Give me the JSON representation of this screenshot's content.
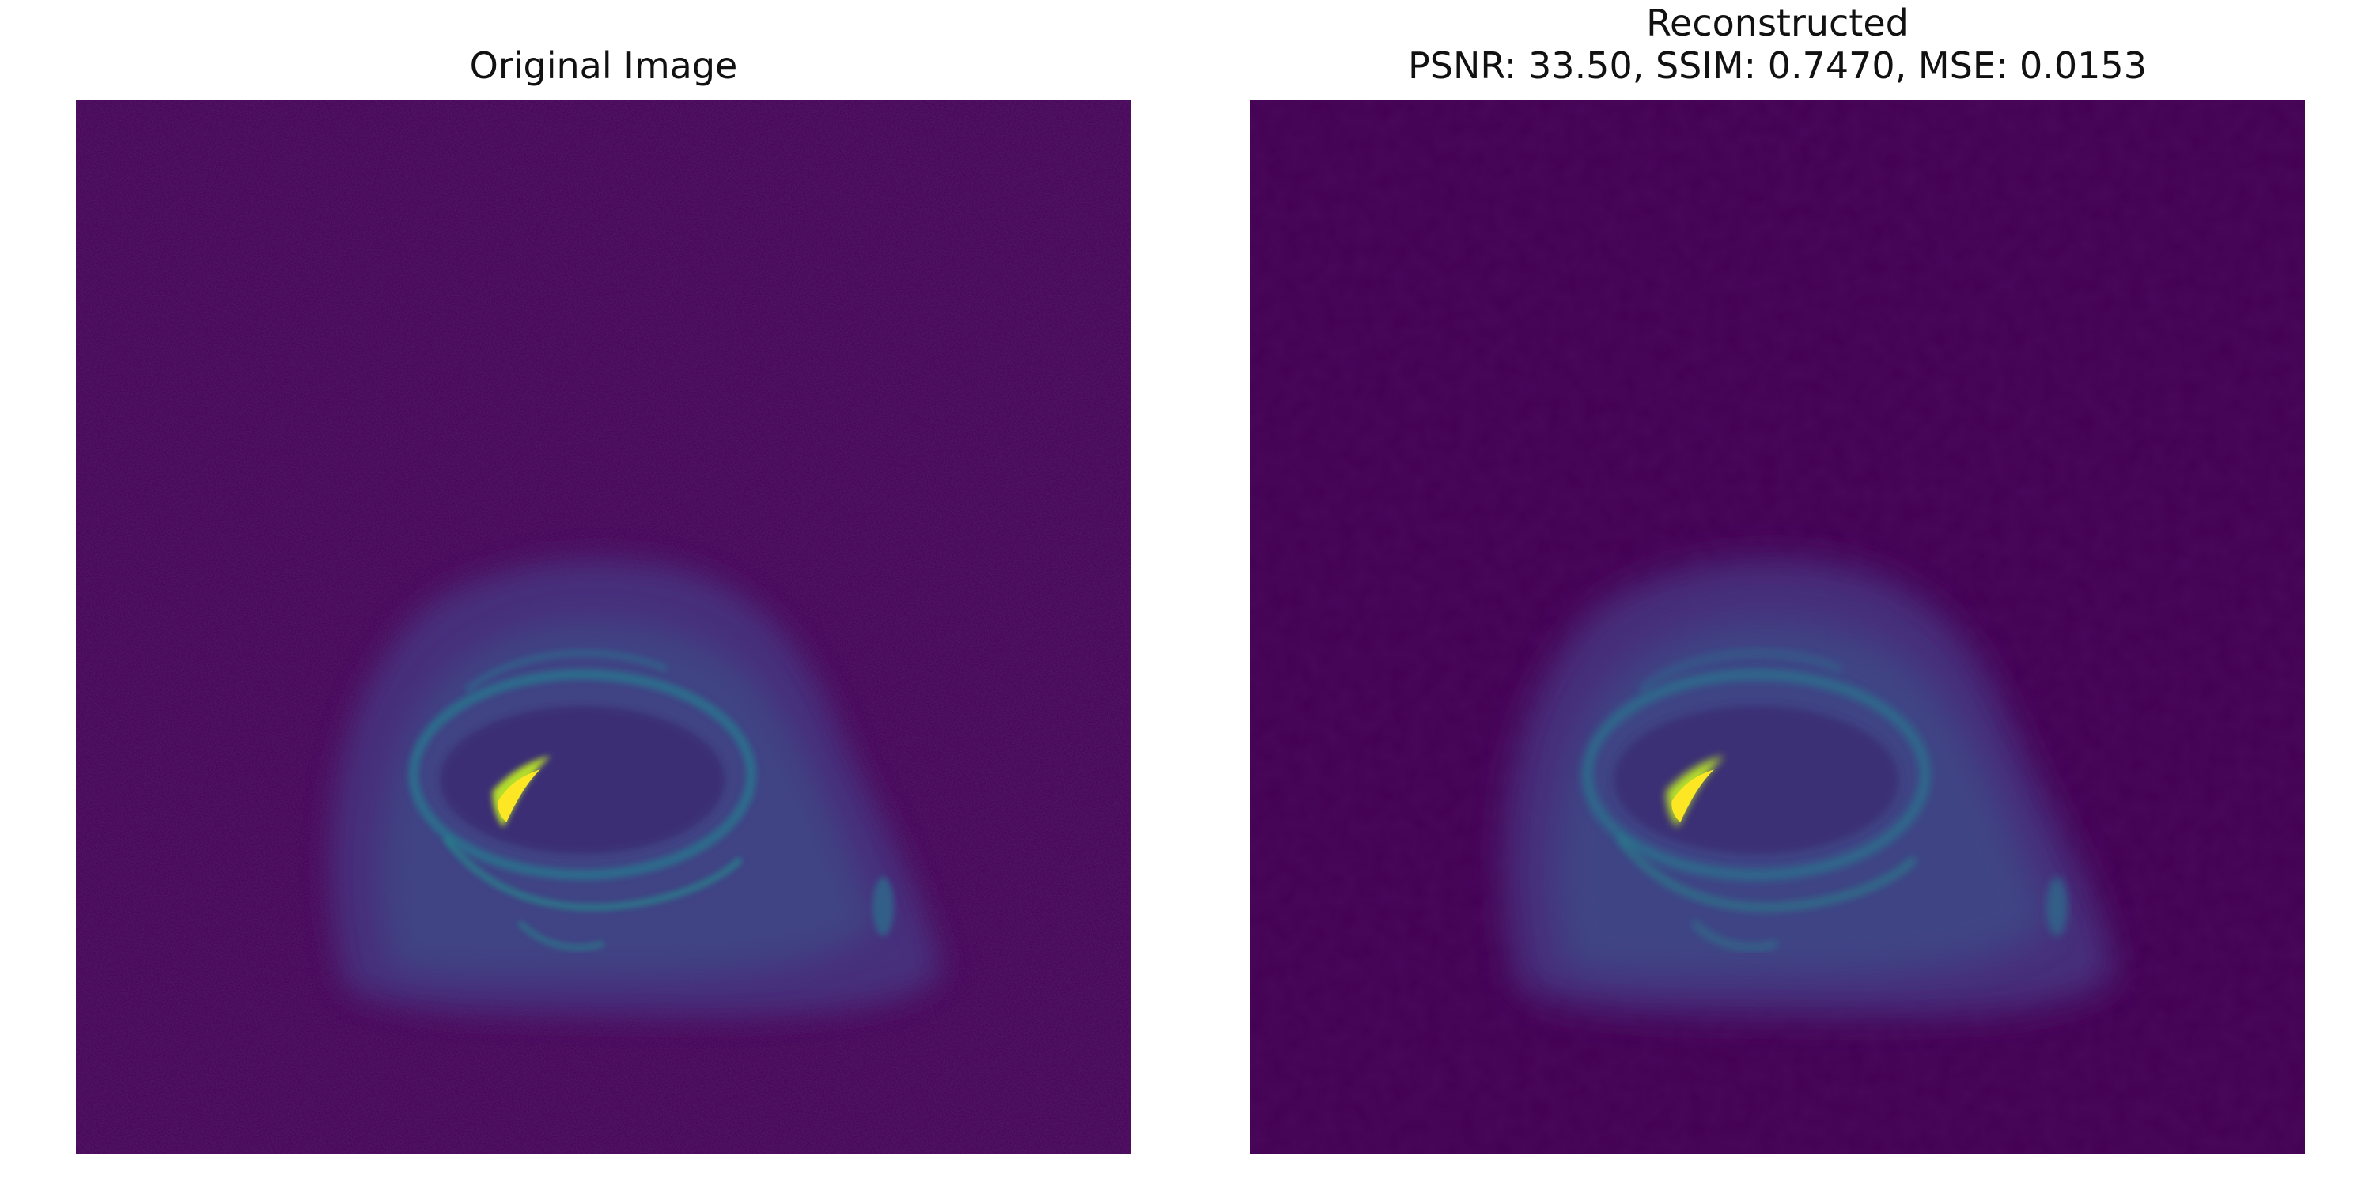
{
  "figure": {
    "left_title": "Original Image",
    "right_title_line1": "Reconstructed",
    "right_title_line2": "PSNR: 33.50, SSIM: 0.7470, MSE: 0.0153"
  },
  "colormap": {
    "name": "viridis",
    "background": "#440154",
    "tissue_dark": "#46307e",
    "tissue_mid": "#3b528b",
    "tissue_edge": "#2c728e",
    "highlight": "#21918c",
    "peak": "#fde725",
    "peak_secondary": "#b5de2b"
  },
  "images": {
    "left": {
      "subject": "knee MRI slice",
      "noise": "high"
    },
    "right": {
      "subject": "knee MRI slice",
      "noise": "low",
      "smoothing": "high"
    }
  }
}
